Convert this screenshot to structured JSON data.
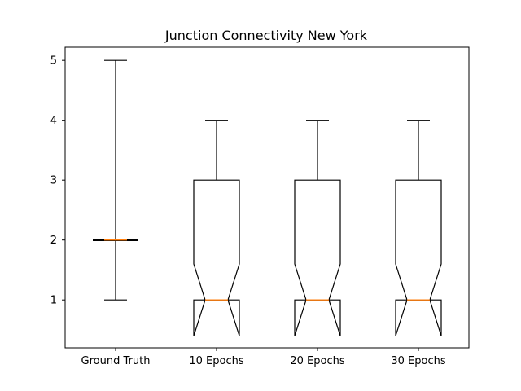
{
  "chart_data": {
    "type": "boxplot",
    "title": "Junction Connectivity New York",
    "xlabel": "",
    "ylabel": "",
    "ylim": [
      0.2,
      5.22
    ],
    "yticks": [
      1,
      2,
      3,
      4,
      5
    ],
    "categories": [
      "Ground Truth",
      "10 Epochs",
      "20 Epochs",
      "30 Epochs"
    ],
    "notched": true,
    "boxes": [
      {
        "category": "Ground Truth",
        "whisker_low": 1,
        "q1": 2,
        "median": 2,
        "q3": 2,
        "whisker_high": 5,
        "notch_low": 2,
        "notch_high": 2
      },
      {
        "category": "10 Epochs",
        "whisker_low": 1,
        "q1": 1,
        "median": 1,
        "q3": 3,
        "whisker_high": 4,
        "notch_low": 0.4,
        "notch_high": 1.6
      },
      {
        "category": "20 Epochs",
        "whisker_low": 1,
        "q1": 1,
        "median": 1,
        "q3": 3,
        "whisker_high": 4,
        "notch_low": 0.4,
        "notch_high": 1.6
      },
      {
        "category": "30 Epochs",
        "whisker_low": 1,
        "q1": 1,
        "median": 1,
        "q3": 3,
        "whisker_high": 4,
        "notch_low": 0.4,
        "notch_high": 1.6
      }
    ],
    "grid": false,
    "colors": {
      "box": "#000000",
      "median": "#ff7f0e",
      "axes": "#000000"
    }
  }
}
